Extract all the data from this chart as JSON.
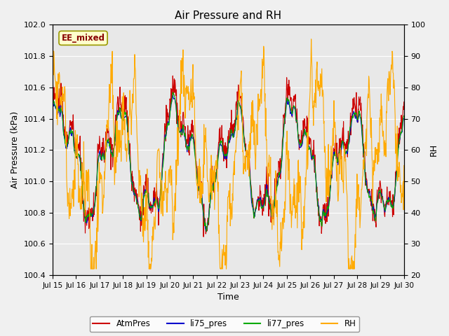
{
  "title": "Air Pressure and RH",
  "xlabel": "Time",
  "ylabel_left": "Air Pressure (kPa)",
  "ylabel_right": "RH",
  "annotation_text": "EE_mixed",
  "ylim_left": [
    100.4,
    102.0
  ],
  "ylim_right": [
    20,
    100
  ],
  "yticks_left": [
    100.4,
    100.6,
    100.8,
    101.0,
    101.2,
    101.4,
    101.6,
    101.8,
    102.0
  ],
  "yticks_right": [
    20,
    30,
    40,
    50,
    60,
    70,
    80,
    90,
    100
  ],
  "fig_bg_color": "#f0f0f0",
  "plot_bg_color": "#e8e8e8",
  "colors": {
    "AtmPres": "#cc0000",
    "li75_pres": "#0000cc",
    "li77_pres": "#00aa00",
    "RH": "#ffaa00"
  },
  "x_tick_labels": [
    "Jul 15",
    "Jul 16",
    "Jul 17",
    "Jul 18",
    "Jul 19",
    "Jul 20",
    "Jul 21",
    "Jul 22",
    "Jul 23",
    "Jul 24",
    "Jul 25",
    "Jul 26",
    "Jul 27",
    "Jul 28",
    "Jul 29",
    "Jul 30"
  ],
  "n_points": 960,
  "linewidth": 0.8
}
